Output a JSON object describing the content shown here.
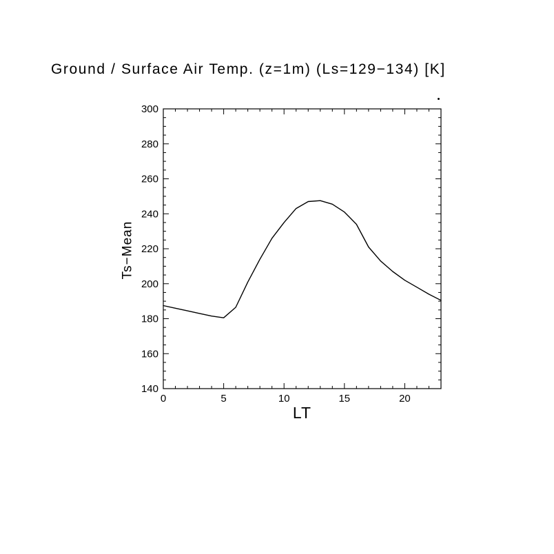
{
  "chart": {
    "title": "Ground / Surface Air Temp. (z=1m) (Ls=129−134) [K]",
    "xlabel": "LT",
    "ylabel": "Ts−Mean"
  },
  "chart_data": {
    "type": "line",
    "title": "Ground / Surface Air Temp. (z=1m) (Ls=129-134) [K]",
    "xlabel": "LT",
    "ylabel": "Ts-Mean",
    "xlim": [
      0,
      23
    ],
    "ylim": [
      140,
      300
    ],
    "xticks": [
      0,
      5,
      10,
      15,
      20
    ],
    "yticks": [
      140,
      160,
      180,
      200,
      220,
      240,
      260,
      280,
      300
    ],
    "xtick_minor_step": 1,
    "ytick_minor_step": 5,
    "grid": false,
    "legend": "none",
    "line_color": "#000000",
    "x": [
      0,
      1,
      2,
      3,
      4,
      5,
      6,
      7,
      8,
      9,
      10,
      11,
      12,
      13,
      14,
      15,
      16,
      17,
      18,
      19,
      20,
      21,
      22,
      23
    ],
    "values": [
      187.5,
      186,
      184.5,
      183,
      181.5,
      180.5,
      186.5,
      201,
      214,
      226,
      235,
      243,
      247,
      247.5,
      245.5,
      241,
      234,
      221,
      213,
      207,
      202,
      198,
      194,
      190.5
    ]
  }
}
